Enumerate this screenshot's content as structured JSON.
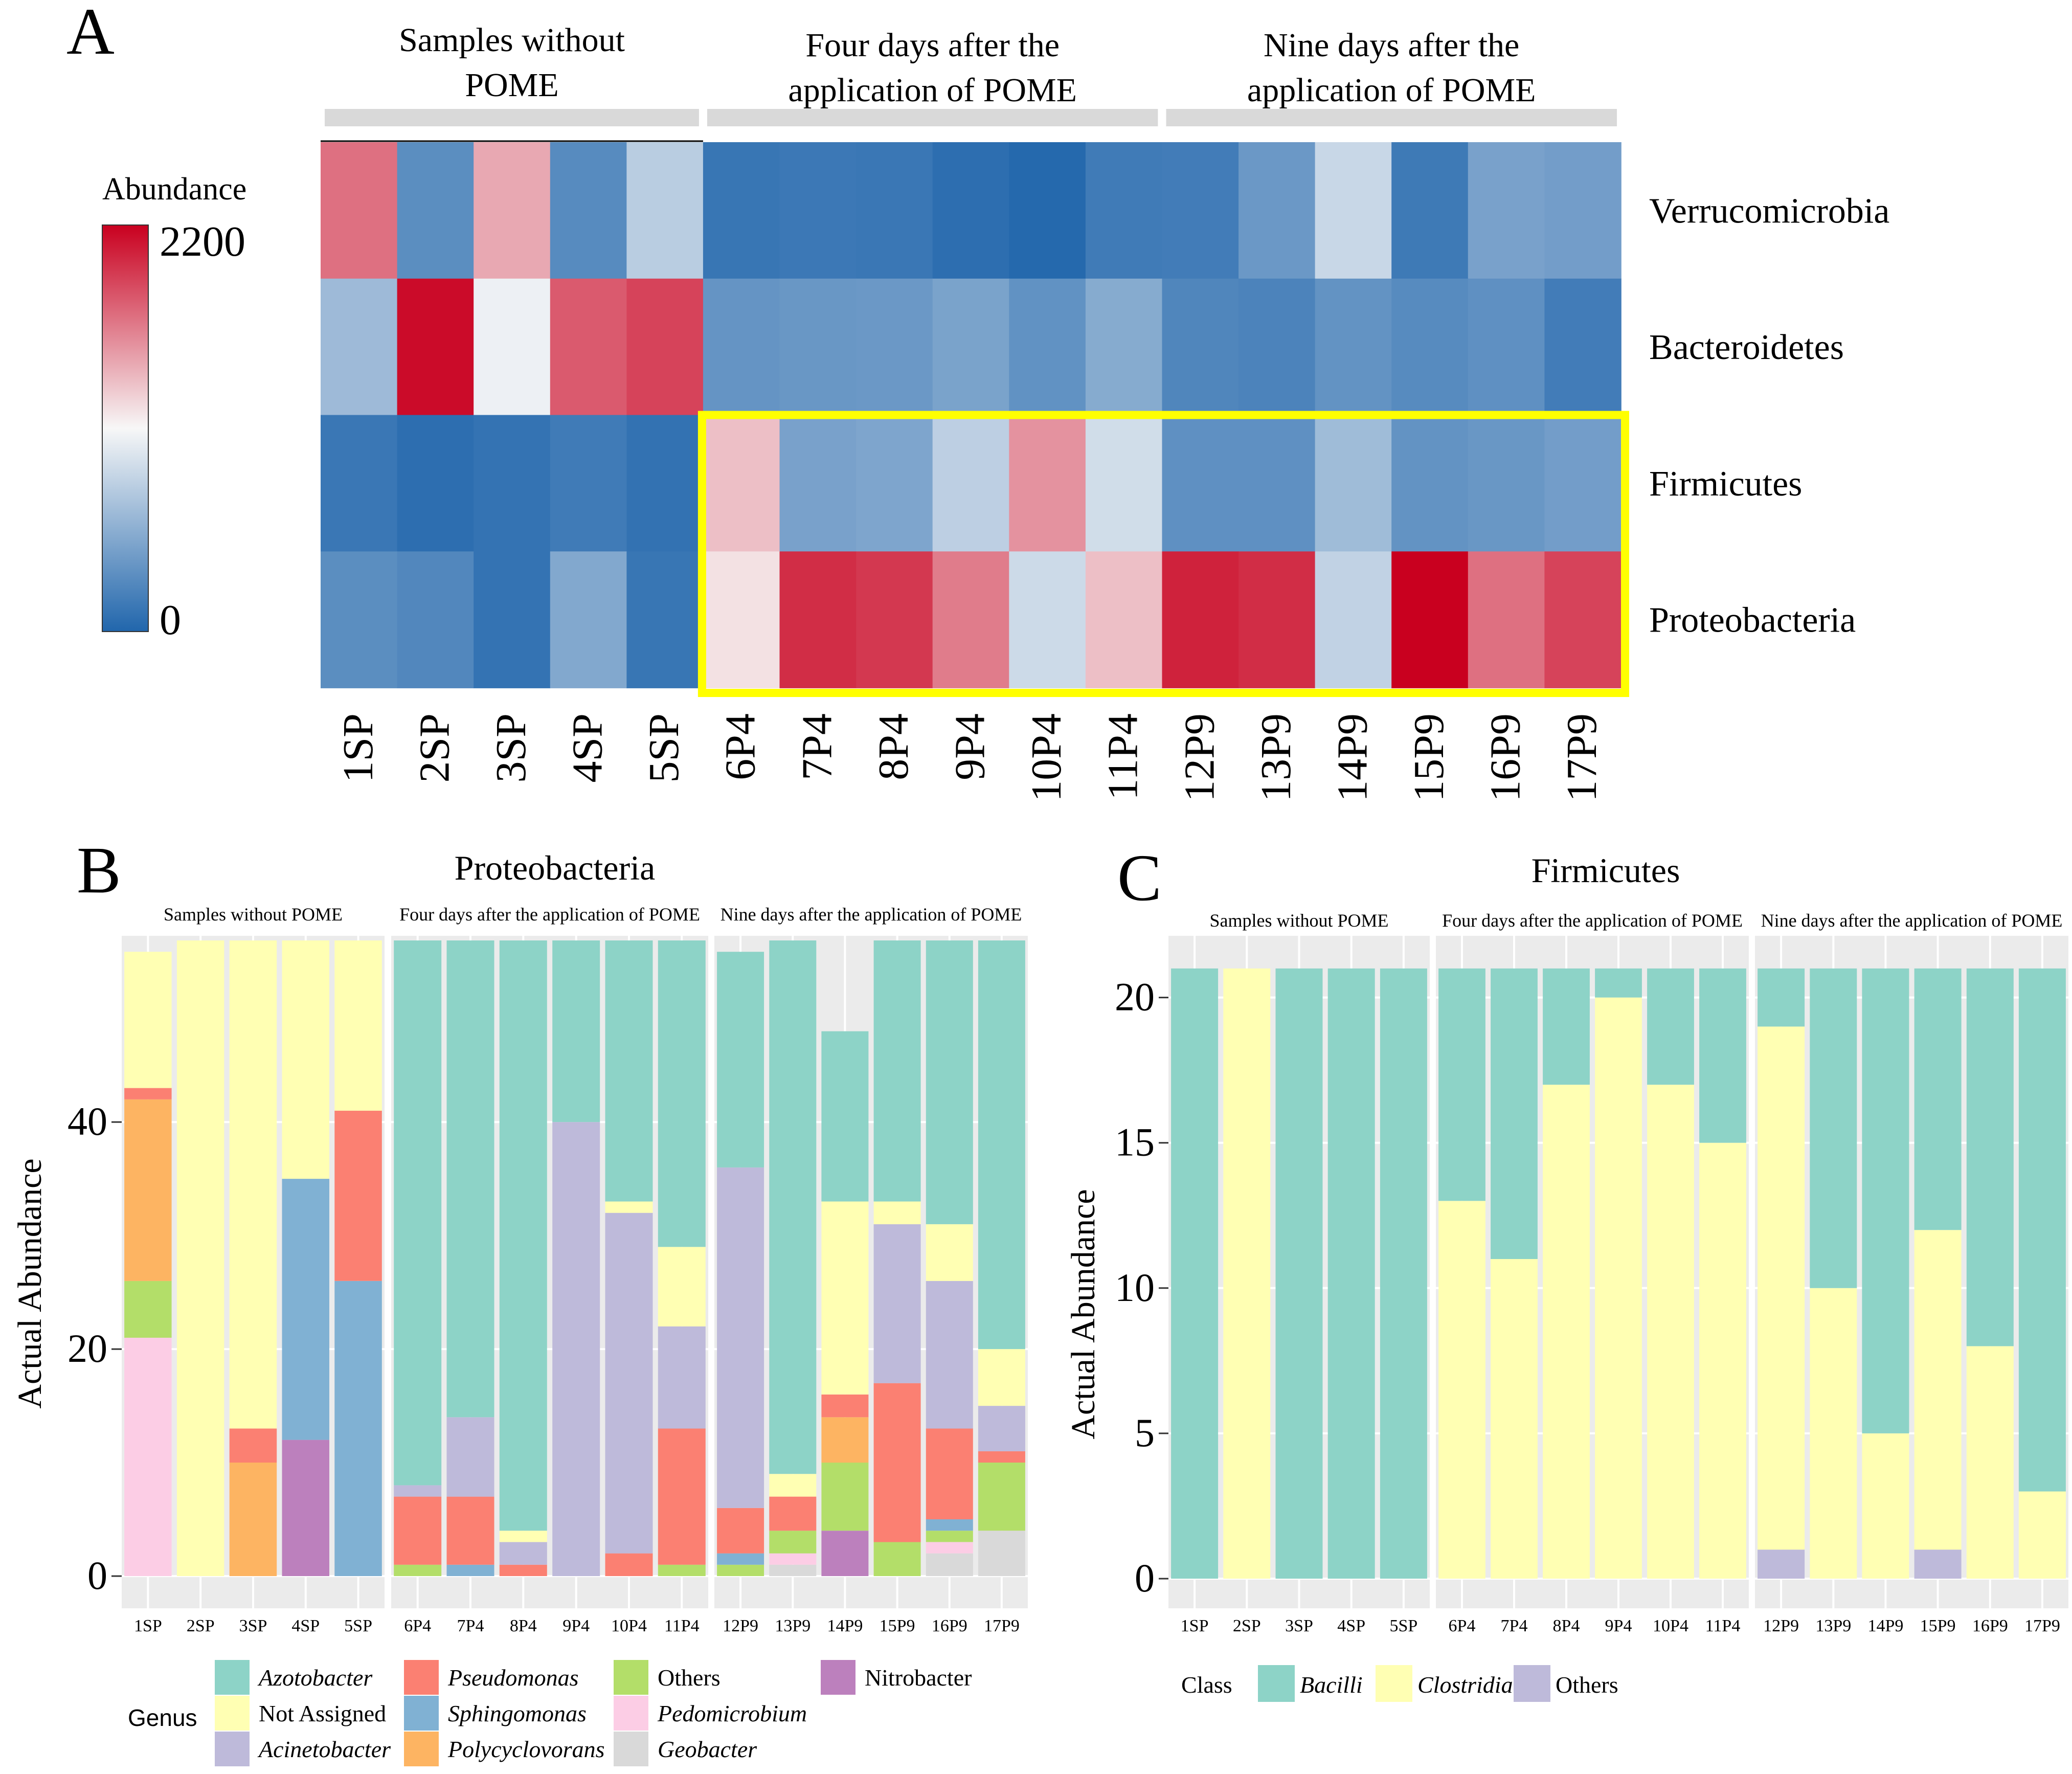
{
  "colors": {
    "strip_bg": "#d9d9d9",
    "panel_bg": "#ebebeb",
    "grid": "#ffffff",
    "highlight": "#ffff00",
    "heat_low": "#2166ac",
    "heat_mid": "#f7f7f7",
    "heat_high": "#c9001f"
  },
  "chart_data": [
    {
      "type": "heatmap",
      "panel_label": "A",
      "legend_title": "Abundance",
      "legend_max_label": "2200",
      "legend_min_label": "0",
      "value_range": [
        0,
        2200
      ],
      "group_labels": [
        {
          "lines": [
            "Samples without",
            "POME"
          ],
          "samples": 5
        },
        {
          "lines": [
            "Four days after the",
            "application of POME"
          ],
          "samples": 6
        },
        {
          "lines": [
            "Nine days after the",
            "application of POME"
          ],
          "samples": 6
        }
      ],
      "rows": [
        "Verrucomicrobia",
        "Bacteroidetes",
        "Firmicutes",
        "Proteobacteria"
      ],
      "columns": [
        "1SP",
        "2SP",
        "3SP",
        "4SP",
        "5SP",
        "6P4",
        "7P4",
        "8P4",
        "9P4",
        "10P4",
        "11P4",
        "12P9",
        "13P9",
        "14P9",
        "15P9",
        "16P9",
        "17P9"
      ],
      "values": [
        [
          1700,
          300,
          1450,
          280,
          780,
          120,
          140,
          130,
          60,
          20,
          160,
          170,
          380,
          860,
          150,
          450,
          420
        ],
        [
          640,
          2150,
          1050,
          1800,
          1900,
          350,
          370,
          380,
          460,
          330,
          520,
          240,
          220,
          340,
          280,
          320,
          170
        ],
        [
          130,
          60,
          100,
          160,
          90,
          1350,
          450,
          480,
          800,
          1550,
          900,
          320,
          320,
          650,
          340,
          370,
          420
        ],
        [
          300,
          250,
          100,
          500,
          120,
          1200,
          2000,
          1950,
          1650,
          880,
          1350,
          2050,
          2000,
          820,
          2200,
          1700,
          1900
        ]
      ],
      "highlight": {
        "rows": [
          "Firmicutes",
          "Proteobacteria"
        ],
        "from": "6P4",
        "to": "17P9"
      }
    },
    {
      "type": "bar",
      "stacked": true,
      "panel_label": "B",
      "title": "Proteobacteria",
      "ylabel": "Actual Abundance",
      "ylim": [
        0,
        56
      ],
      "yticks": [
        0,
        20,
        40
      ],
      "facets": [
        {
          "label": "Samples without POME",
          "samples": [
            "1SP",
            "2SP",
            "3SP",
            "4SP",
            "5SP"
          ]
        },
        {
          "label": "Four days after the application of POME",
          "samples": [
            "6P4",
            "7P4",
            "8P4",
            "9P4",
            "10P4",
            "11P4"
          ]
        },
        {
          "label": "Nine days after the application of POME",
          "samples": [
            "12P9",
            "13P9",
            "14P9",
            "15P9",
            "16P9",
            "17P9"
          ]
        }
      ],
      "legend_title": "Genus",
      "series": [
        {
          "name": "Geobacter",
          "italic": true,
          "color": "#d9d9d9",
          "values": {
            "1SP": 0,
            "2SP": 0,
            "3SP": 0,
            "4SP": 0,
            "5SP": 0,
            "6P4": 0,
            "7P4": 0,
            "8P4": 0,
            "9P4": 0,
            "10P4": 0,
            "11P4": 0,
            "12P9": 0,
            "13P9": 1,
            "14P9": 0,
            "15P9": 0,
            "16P9": 2,
            "17P9": 4
          }
        },
        {
          "name": "Nitrobacter",
          "italic": false,
          "color": "#bc80bd",
          "values": {
            "1SP": 0,
            "2SP": 0,
            "3SP": 0,
            "4SP": 12,
            "5SP": 0,
            "6P4": 0,
            "7P4": 0,
            "8P4": 0,
            "9P4": 0,
            "10P4": 0,
            "11P4": 0,
            "12P9": 0,
            "13P9": 0,
            "14P9": 4,
            "15P9": 0,
            "16P9": 0,
            "17P9": 0
          }
        },
        {
          "name": "Pedomicrobium",
          "italic": true,
          "color": "#fccde5",
          "values": {
            "1SP": 21,
            "2SP": 0,
            "3SP": 0,
            "4SP": 0,
            "5SP": 0,
            "6P4": 0,
            "7P4": 0,
            "8P4": 0,
            "9P4": 0,
            "10P4": 0,
            "11P4": 0,
            "12P9": 0,
            "13P9": 1,
            "14P9": 0,
            "15P9": 0,
            "16P9": 1,
            "17P9": 0
          }
        },
        {
          "name": "Others",
          "italic": false,
          "color": "#b3de69",
          "values": {
            "1SP": 5,
            "2SP": 0,
            "3SP": 0,
            "4SP": 0,
            "5SP": 0,
            "6P4": 1,
            "7P4": 0,
            "8P4": 0,
            "9P4": 0,
            "10P4": 0,
            "11P4": 1,
            "12P9": 1,
            "13P9": 2,
            "14P9": 6,
            "15P9": 3,
            "16P9": 1,
            "17P9": 6
          }
        },
        {
          "name": "Polycyclovorans",
          "italic": true,
          "color": "#fdb462",
          "values": {
            "1SP": 16,
            "2SP": 0,
            "3SP": 10,
            "4SP": 0,
            "5SP": 0,
            "6P4": 0,
            "7P4": 0,
            "8P4": 0,
            "9P4": 0,
            "10P4": 0,
            "11P4": 0,
            "12P9": 0,
            "13P9": 0,
            "14P9": 4,
            "15P9": 0,
            "16P9": 0,
            "17P9": 0
          }
        },
        {
          "name": "Sphingomonas",
          "italic": true,
          "color": "#80b1d3",
          "values": {
            "1SP": 0,
            "2SP": 0,
            "3SP": 0,
            "4SP": 23,
            "5SP": 26,
            "6P4": 0,
            "7P4": 1,
            "8P4": 0,
            "9P4": 0,
            "10P4": 0,
            "11P4": 0,
            "12P9": 1,
            "13P9": 0,
            "14P9": 0,
            "15P9": 0,
            "16P9": 1,
            "17P9": 0
          }
        },
        {
          "name": "Pseudomonas",
          "italic": true,
          "color": "#fb8072",
          "values": {
            "1SP": 1,
            "2SP": 0,
            "3SP": 3,
            "4SP": 0,
            "5SP": 15,
            "6P4": 6,
            "7P4": 6,
            "8P4": 1,
            "9P4": 0,
            "10P4": 2,
            "11P4": 12,
            "12P9": 4,
            "13P9": 3,
            "14P9": 2,
            "15P9": 14,
            "16P9": 8,
            "17P9": 1
          }
        },
        {
          "name": "Acinetobacter",
          "italic": true,
          "color": "#bebada",
          "values": {
            "1SP": 0,
            "2SP": 0,
            "3SP": 0,
            "4SP": 0,
            "5SP": 0,
            "6P4": 1,
            "7P4": 7,
            "8P4": 2,
            "9P4": 40,
            "10P4": 30,
            "11P4": 9,
            "12P9": 30,
            "13P9": 0,
            "14P9": 0,
            "15P9": 14,
            "16P9": 13,
            "17P9": 4
          }
        },
        {
          "name": "Not Assigned",
          "italic": false,
          "color": "#ffffb3",
          "values": {
            "1SP": 12,
            "2SP": 56,
            "3SP": 43,
            "4SP": 21,
            "5SP": 15,
            "6P4": 0,
            "7P4": 0,
            "8P4": 1,
            "9P4": 0,
            "10P4": 1,
            "11P4": 7,
            "12P9": 0,
            "13P9": 2,
            "14P9": 17,
            "15P9": 2,
            "16P9": 5,
            "17P9": 5
          }
        },
        {
          "name": "Azotobacter",
          "italic": true,
          "color": "#8dd3c7",
          "values": {
            "1SP": 0,
            "2SP": 0,
            "3SP": 0,
            "4SP": 0,
            "5SP": 0,
            "6P4": 48,
            "7P4": 42,
            "8P4": 52,
            "9P4": 16,
            "10P4": 23,
            "11P4": 27,
            "12P9": 19,
            "13P9": 47,
            "14P9": 15,
            "15P9": 23,
            "16P9": 25,
            "17P9": 36
          }
        }
      ]
    },
    {
      "type": "bar",
      "stacked": true,
      "panel_label": "C",
      "title": "Firmicutes",
      "ylabel": "Actual Abundance",
      "ylim": [
        0,
        22
      ],
      "yticks": [
        0,
        5,
        10,
        15,
        20
      ],
      "facets": [
        {
          "label": "Samples without POME",
          "samples": [
            "1SP",
            "2SP",
            "3SP",
            "4SP",
            "5SP"
          ]
        },
        {
          "label": "Four days after the application of POME",
          "samples": [
            "6P4",
            "7P4",
            "8P4",
            "9P4",
            "10P4",
            "11P4"
          ]
        },
        {
          "label": "Nine days after the application of POME",
          "samples": [
            "12P9",
            "13P9",
            "14P9",
            "15P9",
            "16P9",
            "17P9"
          ]
        }
      ],
      "legend_title": "Class",
      "series": [
        {
          "name": "Others",
          "italic": false,
          "color": "#bebada",
          "values": {
            "1SP": 0,
            "2SP": 0,
            "3SP": 0,
            "4SP": 0,
            "5SP": 0,
            "6P4": 0,
            "7P4": 0,
            "8P4": 0,
            "9P4": 0,
            "10P4": 0,
            "11P4": 0,
            "12P9": 1,
            "13P9": 0,
            "14P9": 0,
            "15P9": 1,
            "16P9": 0,
            "17P9": 0
          }
        },
        {
          "name": "Clostridia",
          "italic": true,
          "color": "#ffffb3",
          "values": {
            "1SP": 0,
            "2SP": 21,
            "3SP": 0,
            "4SP": 0,
            "5SP": 0,
            "6P4": 13,
            "7P4": 11,
            "8P4": 17,
            "9P4": 20,
            "10P4": 17,
            "11P4": 15,
            "12P9": 18,
            "13P9": 10,
            "14P9": 5,
            "15P9": 11,
            "16P9": 8,
            "17P9": 3
          }
        },
        {
          "name": "Bacilli",
          "italic": true,
          "color": "#8dd3c7",
          "values": {
            "1SP": 21,
            "2SP": 0,
            "3SP": 21,
            "4SP": 21,
            "5SP": 21,
            "6P4": 8,
            "7P4": 10,
            "8P4": 4,
            "9P4": 1,
            "10P4": 4,
            "11P4": 6,
            "12P9": 2,
            "13P9": 11,
            "14P9": 16,
            "15P9": 9,
            "16P9": 13,
            "17P9": 18
          }
        }
      ]
    }
  ],
  "legend_b_order": [
    "Azotobacter",
    "Not Assigned",
    "Acinetobacter",
    "Pseudomonas",
    "Sphingomonas",
    "Polycyclovorans",
    "Others",
    "Pedomicrobium",
    "Geobacter",
    "Nitrobacter"
  ],
  "legend_c_order": [
    "Bacilli",
    "Clostridia",
    "Others"
  ]
}
